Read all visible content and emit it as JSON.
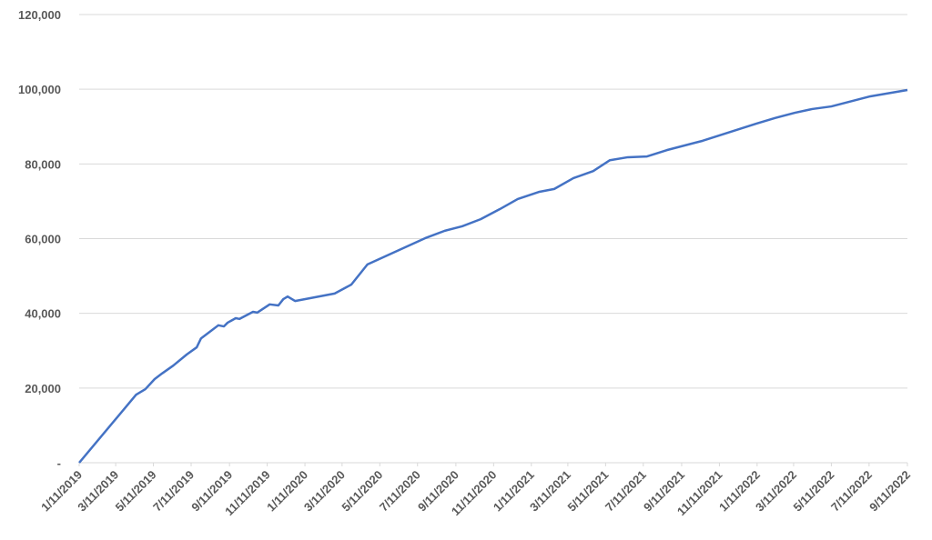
{
  "chart_data": {
    "type": "line",
    "x": [
      "1/11/2019",
      "4/13/2019",
      "4/28/2019",
      "5/13/2019",
      "5/25/2019",
      "6/12/2019",
      "7/4/2019",
      "7/20/2019",
      "7/27/2019",
      "8/12/2019",
      "8/24/2019",
      "9/2/2019",
      "9/8/2019",
      "9/21/2019",
      "9/27/2019",
      "10/19/2019",
      "10/26/2019",
      "11/15/2019",
      "11/29/2019",
      "12/7/2019",
      "12/14/2019",
      "12/26/2019",
      "2/28/2020",
      "3/26/2020",
      "4/21/2020",
      "6/21/2020",
      "7/23/2020",
      "8/24/2020",
      "9/21/2020",
      "10/21/2020",
      "11/21/2020",
      "12/20/2020",
      "1/23/2021",
      "2/17/2021",
      "3/20/2021",
      "4/21/2021",
      "5/18/2021",
      "6/16/2021",
      "7/17/2021",
      "8/18/2021",
      "10/15/2021",
      "1/10/2022",
      "2/9/2022",
      "3/13/2022",
      "4/10/2022",
      "5/11/2022",
      "7/13/2022",
      "9/11/2022"
    ],
    "series": [
      {
        "color": "#4472c4",
        "values": [
          0,
          18200,
          19700,
          22400,
          23900,
          26000,
          29000,
          30900,
          33300,
          35300,
          36800,
          36500,
          37500,
          38700,
          38500,
          40400,
          40200,
          42400,
          42100,
          43800,
          44500,
          43300,
          45300,
          47700,
          53100,
          57700,
          60100,
          62100,
          63300,
          65200,
          67900,
          70600,
          72500,
          73300,
          76200,
          78100,
          81000,
          81800,
          82000,
          83700,
          86200,
          90800,
          92300,
          93700,
          94700,
          95400,
          98100,
          99800
        ]
      }
    ],
    "xlim": [
      "1/11/2019",
      "9/11/2022"
    ],
    "xticks": [
      "1/11/2019",
      "3/11/2019",
      "5/11/2019",
      "7/11/2019",
      "9/11/2019",
      "11/11/2019",
      "1/11/2020",
      "3/11/2020",
      "5/11/2020",
      "7/11/2020",
      "9/11/2020",
      "11/11/2020",
      "1/11/2021",
      "3/11/2021",
      "5/11/2021",
      "7/11/2021",
      "9/11/2021",
      "11/11/2021",
      "1/11/2022",
      "3/11/2022",
      "5/11/2022",
      "7/11/2022",
      "9/11/2022"
    ],
    "ylim": [
      0,
      120000
    ],
    "yticks": [
      {
        "value": 0,
        "label": "-"
      },
      {
        "value": 20000,
        "label": "20,000"
      },
      {
        "value": 40000,
        "label": "40,000"
      },
      {
        "value": 60000,
        "label": "60,000"
      },
      {
        "value": 80000,
        "label": "80,000"
      },
      {
        "value": 100000,
        "label": "100,000"
      },
      {
        "value": 120000,
        "label": "120,000"
      }
    ],
    "grid": true
  }
}
